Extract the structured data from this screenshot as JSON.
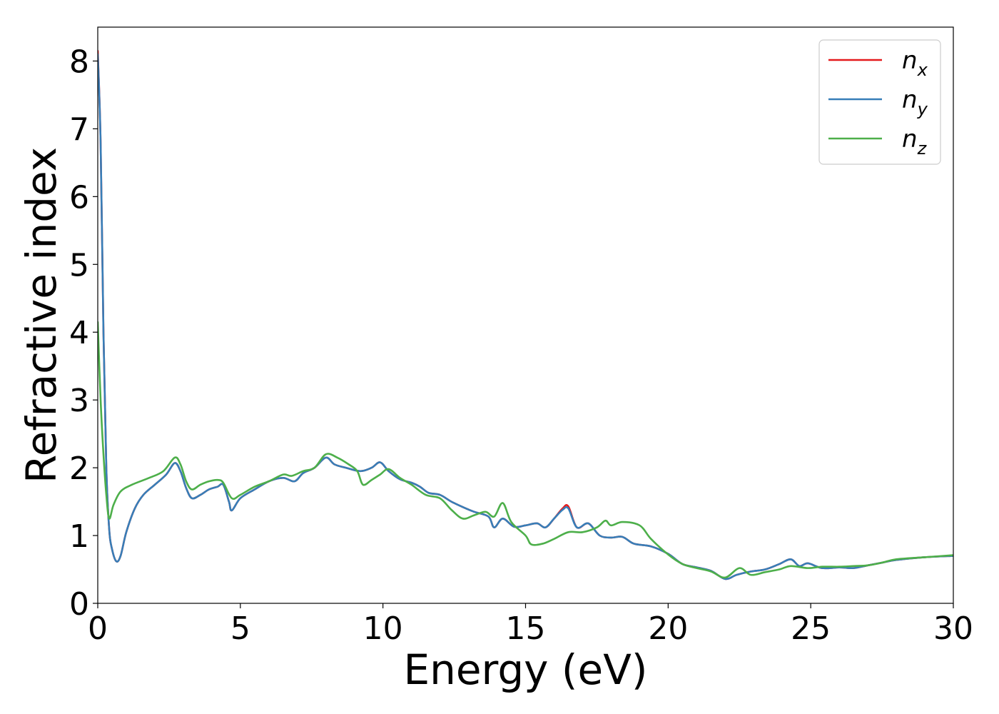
{
  "chart_data": {
    "type": "line",
    "xlabel": "Energy (eV)",
    "ylabel": "Refractive index",
    "xlim": [
      0,
      30
    ],
    "ylim": [
      0,
      8.5
    ],
    "xticks": [
      0,
      5,
      10,
      15,
      20,
      25,
      30
    ],
    "yticks": [
      0,
      1,
      2,
      3,
      4,
      5,
      6,
      7,
      8
    ],
    "xtick_labels": [
      "0",
      "5",
      "10",
      "15",
      "20",
      "25",
      "30"
    ],
    "ytick_labels": [
      "0",
      "1",
      "2",
      "3",
      "4",
      "5",
      "6",
      "7",
      "8"
    ],
    "grid": false,
    "legend_position": "top-right",
    "series": [
      {
        "name": "n_x",
        "legend_base": "n",
        "legend_sub": "x",
        "color": "#e41a1c",
        "points": [
          [
            0,
            8.15
          ],
          [
            0.1,
            6.8
          ],
          [
            0.2,
            4.0
          ],
          [
            0.3,
            2.0
          ],
          [
            0.4,
            1.1
          ],
          [
            0.5,
            0.8
          ],
          [
            0.65,
            0.62
          ],
          [
            0.8,
            0.7
          ],
          [
            1.0,
            1.05
          ],
          [
            1.3,
            1.4
          ],
          [
            1.6,
            1.6
          ],
          [
            2.0,
            1.75
          ],
          [
            2.4,
            1.9
          ],
          [
            2.7,
            2.07
          ],
          [
            2.9,
            1.95
          ],
          [
            3.1,
            1.7
          ],
          [
            3.3,
            1.55
          ],
          [
            3.6,
            1.6
          ],
          [
            3.9,
            1.68
          ],
          [
            4.2,
            1.72
          ],
          [
            4.4,
            1.75
          ],
          [
            4.6,
            1.5
          ],
          [
            4.7,
            1.37
          ],
          [
            5.0,
            1.55
          ],
          [
            5.5,
            1.68
          ],
          [
            6.0,
            1.8
          ],
          [
            6.5,
            1.85
          ],
          [
            6.9,
            1.8
          ],
          [
            7.2,
            1.92
          ],
          [
            7.6,
            2.0
          ],
          [
            8.0,
            2.15
          ],
          [
            8.3,
            2.05
          ],
          [
            8.7,
            2.0
          ],
          [
            9.2,
            1.95
          ],
          [
            9.6,
            2.0
          ],
          [
            9.9,
            2.08
          ],
          [
            10.2,
            1.95
          ],
          [
            10.6,
            1.83
          ],
          [
            11.0,
            1.78
          ],
          [
            11.3,
            1.72
          ],
          [
            11.6,
            1.63
          ],
          [
            12.0,
            1.6
          ],
          [
            12.4,
            1.5
          ],
          [
            12.8,
            1.42
          ],
          [
            13.2,
            1.35
          ],
          [
            13.7,
            1.28
          ],
          [
            13.9,
            1.12
          ],
          [
            14.2,
            1.25
          ],
          [
            14.6,
            1.13
          ],
          [
            15.0,
            1.15
          ],
          [
            15.4,
            1.18
          ],
          [
            15.7,
            1.12
          ],
          [
            16.0,
            1.25
          ],
          [
            16.3,
            1.4
          ],
          [
            16.5,
            1.43
          ],
          [
            16.8,
            1.12
          ],
          [
            17.2,
            1.18
          ],
          [
            17.6,
            1.0
          ],
          [
            18.0,
            0.97
          ],
          [
            18.4,
            0.98
          ],
          [
            18.8,
            0.88
          ],
          [
            19.4,
            0.84
          ],
          [
            20.0,
            0.73
          ],
          [
            20.5,
            0.58
          ],
          [
            21.0,
            0.53
          ],
          [
            21.5,
            0.48
          ],
          [
            22.0,
            0.36
          ],
          [
            22.4,
            0.42
          ],
          [
            22.9,
            0.47
          ],
          [
            23.4,
            0.5
          ],
          [
            23.9,
            0.58
          ],
          [
            24.3,
            0.65
          ],
          [
            24.6,
            0.55
          ],
          [
            24.9,
            0.59
          ],
          [
            25.4,
            0.52
          ],
          [
            26.0,
            0.53
          ],
          [
            26.5,
            0.52
          ],
          [
            27.0,
            0.56
          ],
          [
            27.5,
            0.6
          ],
          [
            28.0,
            0.64
          ],
          [
            29.0,
            0.68
          ],
          [
            30.0,
            0.7
          ]
        ]
      },
      {
        "name": "n_y",
        "legend_base": "n",
        "legend_sub": "y",
        "color": "#377eb8",
        "points": [
          [
            0,
            8.1
          ],
          [
            0.1,
            6.8
          ],
          [
            0.2,
            4.0
          ],
          [
            0.3,
            2.0
          ],
          [
            0.4,
            1.1
          ],
          [
            0.5,
            0.8
          ],
          [
            0.65,
            0.62
          ],
          [
            0.8,
            0.7
          ],
          [
            1.0,
            1.05
          ],
          [
            1.3,
            1.4
          ],
          [
            1.6,
            1.6
          ],
          [
            2.0,
            1.75
          ],
          [
            2.4,
            1.9
          ],
          [
            2.7,
            2.07
          ],
          [
            2.9,
            1.95
          ],
          [
            3.1,
            1.7
          ],
          [
            3.3,
            1.55
          ],
          [
            3.6,
            1.6
          ],
          [
            3.9,
            1.68
          ],
          [
            4.2,
            1.72
          ],
          [
            4.4,
            1.75
          ],
          [
            4.6,
            1.5
          ],
          [
            4.7,
            1.37
          ],
          [
            5.0,
            1.55
          ],
          [
            5.5,
            1.68
          ],
          [
            6.0,
            1.8
          ],
          [
            6.5,
            1.85
          ],
          [
            6.9,
            1.8
          ],
          [
            7.2,
            1.92
          ],
          [
            7.6,
            2.0
          ],
          [
            8.0,
            2.15
          ],
          [
            8.3,
            2.05
          ],
          [
            8.7,
            2.0
          ],
          [
            9.2,
            1.95
          ],
          [
            9.6,
            2.0
          ],
          [
            9.9,
            2.08
          ],
          [
            10.2,
            1.95
          ],
          [
            10.6,
            1.83
          ],
          [
            11.0,
            1.78
          ],
          [
            11.3,
            1.72
          ],
          [
            11.6,
            1.63
          ],
          [
            12.0,
            1.6
          ],
          [
            12.4,
            1.5
          ],
          [
            12.8,
            1.42
          ],
          [
            13.2,
            1.35
          ],
          [
            13.7,
            1.28
          ],
          [
            13.9,
            1.12
          ],
          [
            14.2,
            1.25
          ],
          [
            14.6,
            1.13
          ],
          [
            15.0,
            1.15
          ],
          [
            15.4,
            1.18
          ],
          [
            15.7,
            1.12
          ],
          [
            16.0,
            1.25
          ],
          [
            16.3,
            1.38
          ],
          [
            16.5,
            1.4
          ],
          [
            16.8,
            1.12
          ],
          [
            17.2,
            1.18
          ],
          [
            17.6,
            1.0
          ],
          [
            18.0,
            0.97
          ],
          [
            18.4,
            0.98
          ],
          [
            18.8,
            0.88
          ],
          [
            19.4,
            0.84
          ],
          [
            20.0,
            0.73
          ],
          [
            20.5,
            0.58
          ],
          [
            21.0,
            0.53
          ],
          [
            21.5,
            0.48
          ],
          [
            22.0,
            0.36
          ],
          [
            22.4,
            0.42
          ],
          [
            22.9,
            0.47
          ],
          [
            23.4,
            0.5
          ],
          [
            23.9,
            0.58
          ],
          [
            24.3,
            0.65
          ],
          [
            24.6,
            0.55
          ],
          [
            24.9,
            0.59
          ],
          [
            25.4,
            0.52
          ],
          [
            26.0,
            0.53
          ],
          [
            26.5,
            0.52
          ],
          [
            27.0,
            0.56
          ],
          [
            27.5,
            0.6
          ],
          [
            28.0,
            0.64
          ],
          [
            29.0,
            0.68
          ],
          [
            30.0,
            0.7
          ]
        ]
      },
      {
        "name": "n_z",
        "legend_base": "n",
        "legend_sub": "z",
        "color": "#4daf4a",
        "points": [
          [
            0,
            4.15
          ],
          [
            0.1,
            3.0
          ],
          [
            0.2,
            2.2
          ],
          [
            0.3,
            1.6
          ],
          [
            0.4,
            1.25
          ],
          [
            0.55,
            1.45
          ],
          [
            0.8,
            1.65
          ],
          [
            1.2,
            1.75
          ],
          [
            1.8,
            1.85
          ],
          [
            2.3,
            1.95
          ],
          [
            2.7,
            2.15
          ],
          [
            2.9,
            2.05
          ],
          [
            3.1,
            1.8
          ],
          [
            3.3,
            1.68
          ],
          [
            3.6,
            1.75
          ],
          [
            3.9,
            1.8
          ],
          [
            4.2,
            1.82
          ],
          [
            4.4,
            1.78
          ],
          [
            4.7,
            1.55
          ],
          [
            5.0,
            1.6
          ],
          [
            5.5,
            1.72
          ],
          [
            6.0,
            1.8
          ],
          [
            6.5,
            1.9
          ],
          [
            6.8,
            1.88
          ],
          [
            7.2,
            1.95
          ],
          [
            7.6,
            2.0
          ],
          [
            8.0,
            2.2
          ],
          [
            8.4,
            2.15
          ],
          [
            8.8,
            2.05
          ],
          [
            9.1,
            1.95
          ],
          [
            9.3,
            1.75
          ],
          [
            9.6,
            1.82
          ],
          [
            9.9,
            1.9
          ],
          [
            10.2,
            1.98
          ],
          [
            10.6,
            1.85
          ],
          [
            11.0,
            1.75
          ],
          [
            11.5,
            1.6
          ],
          [
            12.0,
            1.55
          ],
          [
            12.4,
            1.38
          ],
          [
            12.8,
            1.25
          ],
          [
            13.2,
            1.3
          ],
          [
            13.6,
            1.35
          ],
          [
            13.9,
            1.28
          ],
          [
            14.2,
            1.48
          ],
          [
            14.5,
            1.2
          ],
          [
            15.0,
            1.0
          ],
          [
            15.2,
            0.87
          ],
          [
            15.6,
            0.88
          ],
          [
            16.0,
            0.95
          ],
          [
            16.5,
            1.05
          ],
          [
            17.0,
            1.05
          ],
          [
            17.5,
            1.12
          ],
          [
            17.8,
            1.22
          ],
          [
            18.0,
            1.15
          ],
          [
            18.4,
            1.2
          ],
          [
            19.0,
            1.15
          ],
          [
            19.4,
            0.95
          ],
          [
            20.0,
            0.72
          ],
          [
            20.5,
            0.58
          ],
          [
            21.0,
            0.52
          ],
          [
            21.5,
            0.47
          ],
          [
            22.0,
            0.38
          ],
          [
            22.5,
            0.52
          ],
          [
            22.9,
            0.42
          ],
          [
            23.4,
            0.46
          ],
          [
            23.9,
            0.5
          ],
          [
            24.3,
            0.55
          ],
          [
            24.9,
            0.52
          ],
          [
            25.4,
            0.54
          ],
          [
            26.0,
            0.54
          ],
          [
            26.5,
            0.55
          ],
          [
            27.0,
            0.56
          ],
          [
            27.5,
            0.6
          ],
          [
            28.0,
            0.65
          ],
          [
            29.0,
            0.68
          ],
          [
            30.0,
            0.71
          ]
        ]
      }
    ]
  }
}
